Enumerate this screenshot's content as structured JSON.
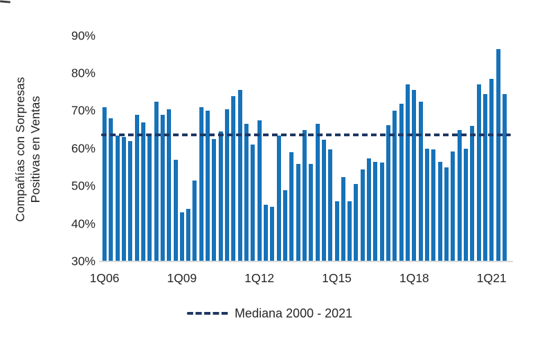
{
  "chart_data": {
    "type": "bar",
    "title": "",
    "ylabel": "Compañías con Sorpresas Positivas en Ventas",
    "ylabel_lines": [
      "Compañías con Sorpresas",
      "Positivas en Ventas"
    ],
    "unit": "%",
    "ylim": [
      30,
      90
    ],
    "grid": "off",
    "y_tick_labels": [
      "90%",
      "80%",
      "70%",
      "60%",
      "50%",
      "40%",
      "30%"
    ],
    "y_tick_values": [
      90,
      80,
      70,
      60,
      50,
      40,
      30
    ],
    "x_tick_labels": [
      "1Q06",
      "1Q09",
      "1Q12",
      "1Q15",
      "1Q18",
      "1Q21"
    ],
    "x_tick_indices": [
      0,
      12,
      24,
      36,
      48,
      60
    ],
    "categories": [
      "1Q06",
      "2Q06",
      "3Q06",
      "4Q06",
      "1Q07",
      "2Q07",
      "3Q07",
      "4Q07",
      "1Q08",
      "2Q08",
      "3Q08",
      "4Q08",
      "1Q09",
      "2Q09",
      "3Q09",
      "4Q09",
      "1Q10",
      "2Q10",
      "3Q10",
      "4Q10",
      "1Q11",
      "2Q11",
      "3Q11",
      "4Q11",
      "1Q12",
      "2Q12",
      "3Q12",
      "4Q12",
      "1Q13",
      "2Q13",
      "3Q13",
      "4Q13",
      "1Q14",
      "2Q14",
      "3Q14",
      "4Q14",
      "1Q15",
      "2Q15",
      "3Q15",
      "4Q15",
      "1Q16",
      "2Q16",
      "3Q16",
      "4Q16",
      "1Q17",
      "2Q17",
      "3Q17",
      "4Q17",
      "1Q18",
      "2Q18",
      "3Q18",
      "4Q18",
      "1Q19",
      "2Q19",
      "3Q19",
      "4Q19",
      "1Q20",
      "2Q20",
      "3Q20",
      "4Q20",
      "1Q21",
      "2Q21",
      "3Q21"
    ],
    "values": [
      71,
      68,
      63.5,
      63,
      62,
      69,
      67,
      64,
      72.5,
      69,
      70.5,
      57,
      43,
      44,
      51.5,
      71,
      70,
      62.5,
      64.5,
      70.5,
      74,
      75.5,
      66.5,
      61,
      67.5,
      45,
      44.5,
      63.5,
      49,
      59,
      56,
      65,
      56,
      66.5,
      62.3,
      59.7,
      46,
      52.5,
      46,
      50.5,
      54.5,
      57.4,
      56.5,
      56.3,
      66.3,
      70,
      72,
      77,
      75.5,
      72.5,
      60,
      59.8,
      56.5,
      55,
      59.3,
      65,
      60,
      66,
      77,
      74.5,
      78.5,
      86.5,
      74.5
    ],
    "median_line": {
      "label": "Mediana 2000 - 2021",
      "value": 63.7,
      "color": "#1F3864",
      "style": "dashed"
    },
    "legend": {
      "position": "bottom",
      "entries": [
        {
          "label": "Mediana 2000 - 2021",
          "style": "dashed-line",
          "color": "#1F3864"
        }
      ]
    },
    "colors": {
      "bar": "#1772B8",
      "median": "#1F3864",
      "axis_line": "#d9d9d9",
      "text": "#262626",
      "background": "#ffffff"
    }
  }
}
